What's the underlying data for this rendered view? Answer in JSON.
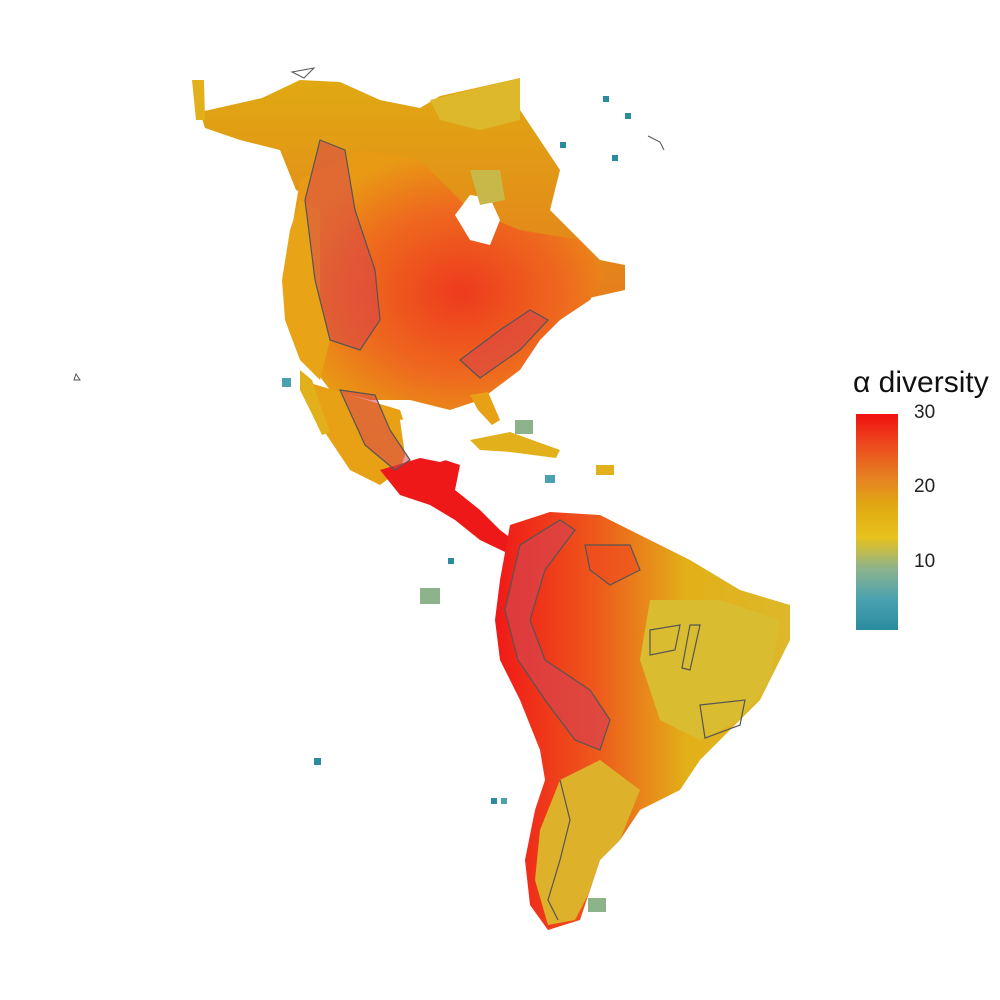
{
  "legend": {
    "title": "α diversity",
    "ticks": [
      30,
      20,
      10
    ],
    "tick_labels": [
      "30",
      "20",
      "10"
    ],
    "range": [
      1,
      30
    ],
    "colors": [
      "#2A8C9E",
      "#4AA2B0",
      "#8DB38A",
      "#E8C21D",
      "#E0A912",
      "#E67E22",
      "#EE4A1E",
      "#F01010"
    ]
  },
  "map": {
    "projection": "Americas",
    "outline_color": "#555555",
    "highland_fill": "#D9434A"
  }
}
